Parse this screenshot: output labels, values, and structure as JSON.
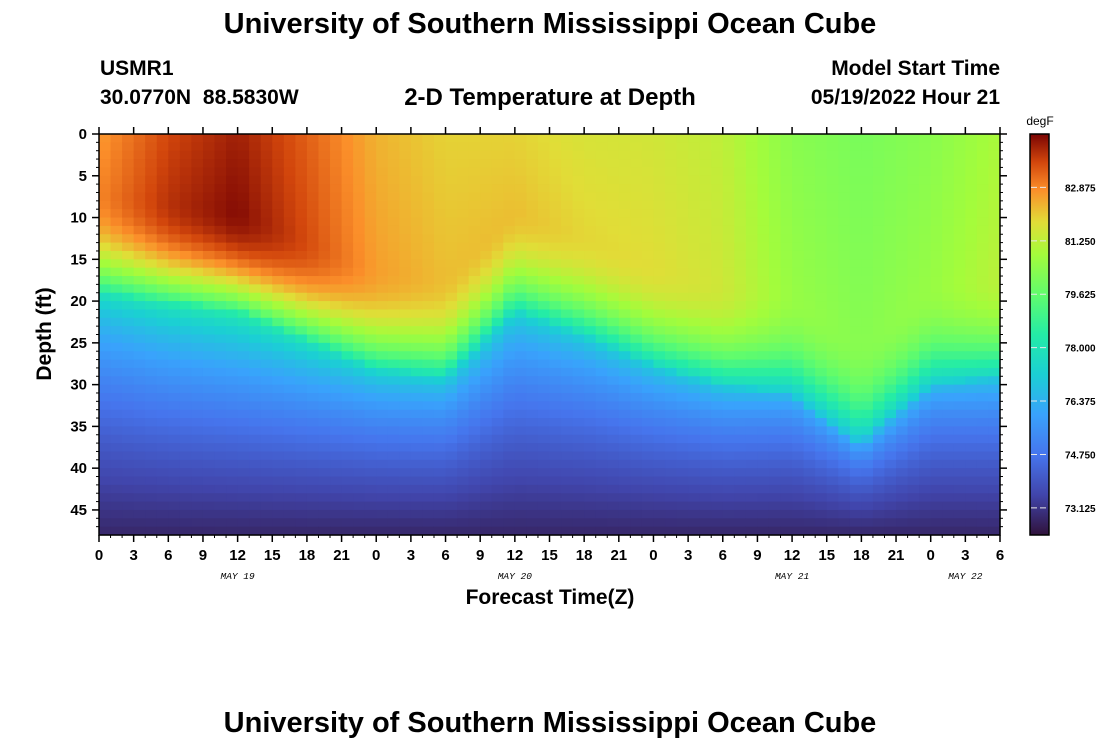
{
  "header": {
    "title": "University of Southern Mississippi Ocean Cube",
    "station": "USMR1",
    "coordinates": "30.0770N  88.5830W",
    "subtitle": "2-D Temperature at Depth",
    "model_start_label": "Model Start Time",
    "model_start_value": "05/19/2022 Hour 21"
  },
  "footer": {
    "title": "University of Southern Mississippi Ocean Cube"
  },
  "chart_data": {
    "type": "heatmap",
    "title": "2-D Temperature at Depth",
    "xlabel": "Forecast Time(Z)",
    "ylabel": "Depth (ft)",
    "x_range_hours": [
      0,
      78
    ],
    "x_tick_step_hours": 3,
    "x_tick_labels": [
      "0",
      "3",
      "6",
      "9",
      "12",
      "15",
      "18",
      "21",
      "0",
      "3",
      "6",
      "9",
      "12",
      "15",
      "18",
      "21",
      "0",
      "3",
      "6",
      "9",
      "12",
      "15",
      "18",
      "21",
      "0",
      "3",
      "6"
    ],
    "day_labels": [
      {
        "text": "MAY 19",
        "hour": 12
      },
      {
        "text": "MAY 20",
        "hour": 36
      },
      {
        "text": "MAY 21",
        "hour": 60
      },
      {
        "text": "MAY 22",
        "hour": 75
      }
    ],
    "y_range_ft": [
      0,
      48
    ],
    "y_ticks": [
      "0",
      "5",
      "10",
      "15",
      "20",
      "25",
      "30",
      "35",
      "40",
      "45"
    ],
    "colorbar": {
      "unit": "degF",
      "min": 72.3,
      "max": 84.5,
      "ticks": [
        "82.875",
        "81.250",
        "79.625",
        "78.000",
        "76.375",
        "74.750",
        "73.125"
      ]
    },
    "thermocline_hours": [
      0,
      6,
      12,
      18,
      24,
      30,
      36,
      42,
      48,
      54,
      60,
      66,
      72,
      78
    ],
    "thermocline_depth_ft": [
      19,
      20,
      21,
      24.5,
      28,
      29,
      21,
      24,
      27.5,
      30,
      31,
      37,
      30,
      29
    ],
    "surface_temp_hours": [
      0,
      6,
      12,
      18,
      24,
      30,
      36,
      42,
      48,
      54,
      60,
      66,
      72,
      78
    ],
    "surface_temp_degF": [
      82.9,
      83.9,
      84.4,
      83.6,
      82.6,
      82.2,
      82.2,
      81.9,
      81.8,
      81.5,
      80.6,
      80.3,
      80.6,
      81.2
    ],
    "bottom_temp_degF": 72.8
  }
}
